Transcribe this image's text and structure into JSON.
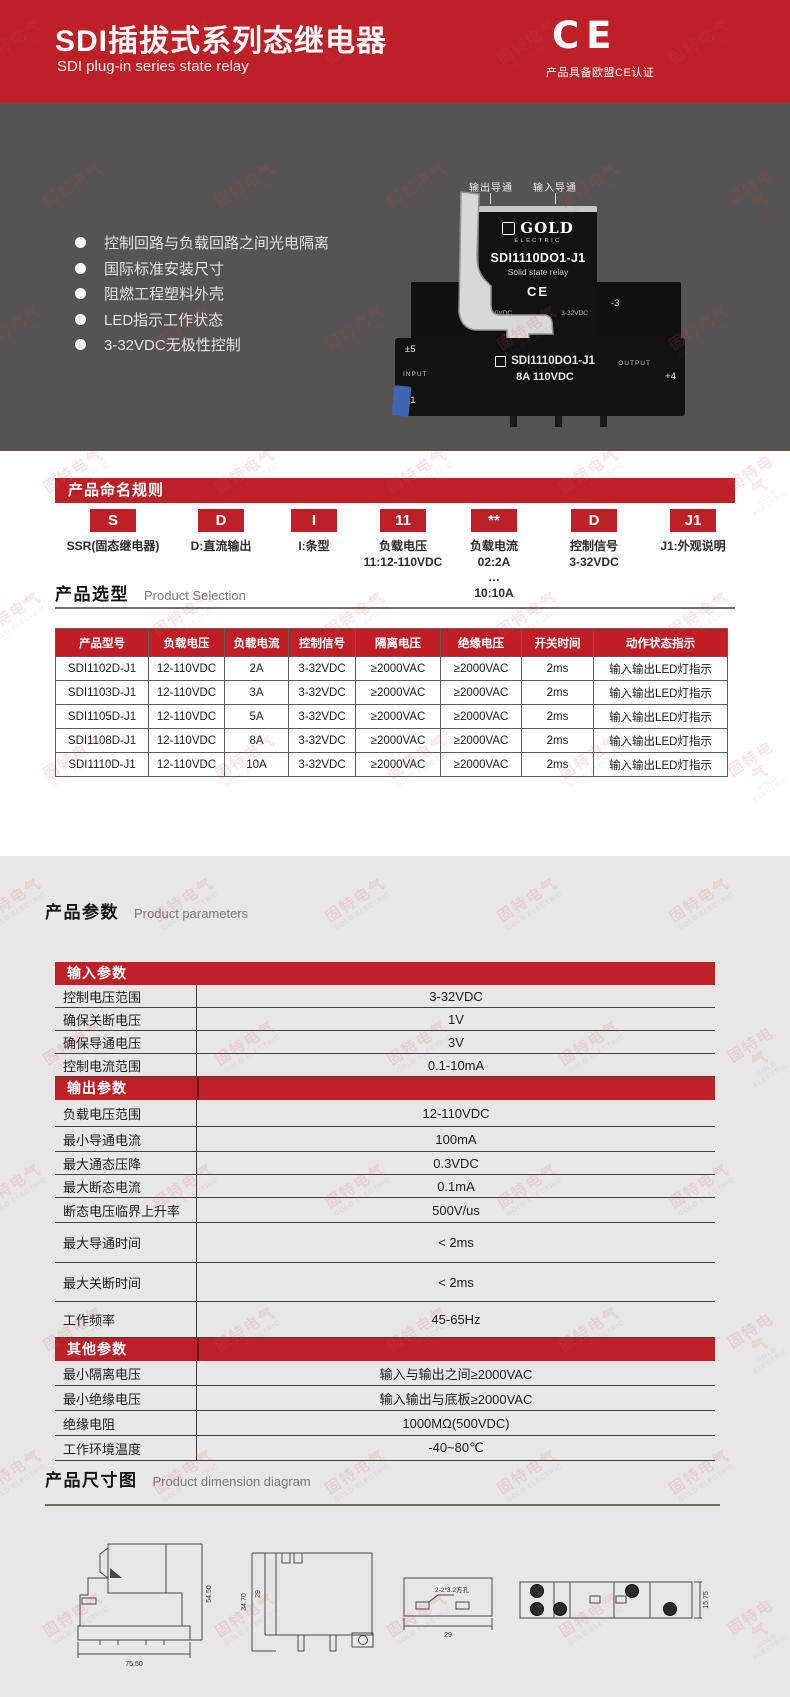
{
  "theme": {
    "red": "#BE2028",
    "table_header_red": "#C01E24",
    "dark_bg": "#575350",
    "gray_bg": "#E8E7E5"
  },
  "header": {
    "title": "SDI插拔式系列态继电器",
    "subtitle": "SDI plug-in series state relay",
    "ce_mark": "CE",
    "ce_note": "产品具备欧盟CE认证"
  },
  "hero": {
    "features": [
      "控制回路与负载回路之间光电隔离",
      "国际标准安装尺寸",
      "阻燃工程塑料外壳",
      "LED指示工作状态",
      "3-32VDC无极性控制"
    ],
    "image": {
      "label_output": "输出导通",
      "label_input": "输入导通",
      "brand": "GOLD",
      "brand_sub": "ELECTRIC",
      "model": "SDI1110DO1-J1",
      "type_line": "Solid state relay",
      "ce": "CE",
      "spec_left": "110VDC",
      "spec_right": "3-32VDC",
      "pin_minus3": "-3",
      "pin_output": "OUTPUT",
      "pin_plus4": "+4",
      "pin_pm5": "±5",
      "pin_input": "INPUT",
      "pin_pm1": "±1",
      "socket_model": "SDI1110DO1-J1",
      "socket_spec": "8A 110VDC"
    }
  },
  "naming": {
    "title": "产品命名规则",
    "blocks": [
      {
        "code": "S",
        "lines": [
          "SSR(固态继电器)"
        ]
      },
      {
        "code": "D",
        "lines": [
          "D:直流输出"
        ]
      },
      {
        "code": "I",
        "lines": [
          "I:条型"
        ]
      },
      {
        "code": "11",
        "lines": [
          "负载电压",
          "11:12-110VDC"
        ]
      },
      {
        "code": "**",
        "lines": [
          "负载电流",
          "02:2A",
          "…",
          "10:10A"
        ]
      },
      {
        "code": "D",
        "lines": [
          "控制信号",
          "3-32VDC"
        ]
      },
      {
        "code": "J1",
        "lines": [
          "J1:外观说明"
        ]
      }
    ]
  },
  "selection": {
    "title": "产品选型",
    "subtitle": "Product Selection",
    "headers": [
      "产品型号",
      "负载电压",
      "负载电流",
      "控制信号",
      "隔离电压",
      "绝缘电压",
      "开关时间",
      "动作状态指示"
    ],
    "rows": [
      [
        "SDI1102D-J1",
        "12-110VDC",
        "2A",
        "3-32VDC",
        "≥2000VAC",
        "≥2000VAC",
        "2ms",
        "输入输出LED灯指示"
      ],
      [
        "SDI1103D-J1",
        "12-110VDC",
        "3A",
        "3-32VDC",
        "≥2000VAC",
        "≥2000VAC",
        "2ms",
        "输入输出LED灯指示"
      ],
      [
        "SDI1105D-J1",
        "12-110VDC",
        "5A",
        "3-32VDC",
        "≥2000VAC",
        "≥2000VAC",
        "2ms",
        "输入输出LED灯指示"
      ],
      [
        "SDI1108D-J1",
        "12-110VDC",
        "8A",
        "3-32VDC",
        "≥2000VAC",
        "≥2000VAC",
        "2ms",
        "输入输出LED灯指示"
      ],
      [
        "SDI1110D-J1",
        "12-110VDC",
        "10A",
        "3-32VDC",
        "≥2000VAC",
        "≥2000VAC",
        "2ms",
        "输入输出LED灯指示"
      ]
    ]
  },
  "parameters": {
    "title": "产品参数",
    "subtitle": "Product parameters",
    "groups": [
      {
        "header": "输入参数",
        "rows": [
          [
            "控制电压范围",
            "3-32VDC"
          ],
          [
            "确保关断电压",
            "1V"
          ],
          [
            "确保导通电压",
            "3V"
          ],
          [
            "控制电流范围",
            "0.1-10mA"
          ]
        ]
      },
      {
        "header": "输出参数",
        "rows": [
          [
            "负载电压范围",
            "12-110VDC"
          ],
          [
            "最小导通电流",
            "100mA"
          ],
          [
            "最大通态压降",
            "0.3VDC"
          ],
          [
            "最大断态电流",
            "0.1mA"
          ],
          [
            "断态电压临界上升率",
            "500V/us"
          ],
          [
            "最大导通时间",
            "< 2ms"
          ],
          [
            "最大关断时间",
            "< 2ms"
          ],
          [
            "工作频率",
            "45-65Hz"
          ]
        ]
      },
      {
        "header": "其他参数",
        "rows": [
          [
            "最小隔离电压",
            "输入与输出之间≥2000VAC"
          ],
          [
            "最小绝缘电压",
            "输入输出与底板≥2000VAC"
          ],
          [
            "绝缘电阻",
            "1000MΩ(500VDC)"
          ],
          [
            "工作环境温度",
            "-40~80℃"
          ]
        ]
      }
    ]
  },
  "dimensions": {
    "title": "产品尺寸图",
    "subtitle": "Product dimension diagram",
    "side_width": "75.50",
    "side_height": "54.50",
    "front_height": "34.70",
    "front_inner": "29",
    "top_note": "2-2*3.2方孔",
    "top_width": "29",
    "plan_height": "15.75"
  },
  "watermark": {
    "cn": "固特电气",
    "en": "GOLD ELECTRIC"
  }
}
